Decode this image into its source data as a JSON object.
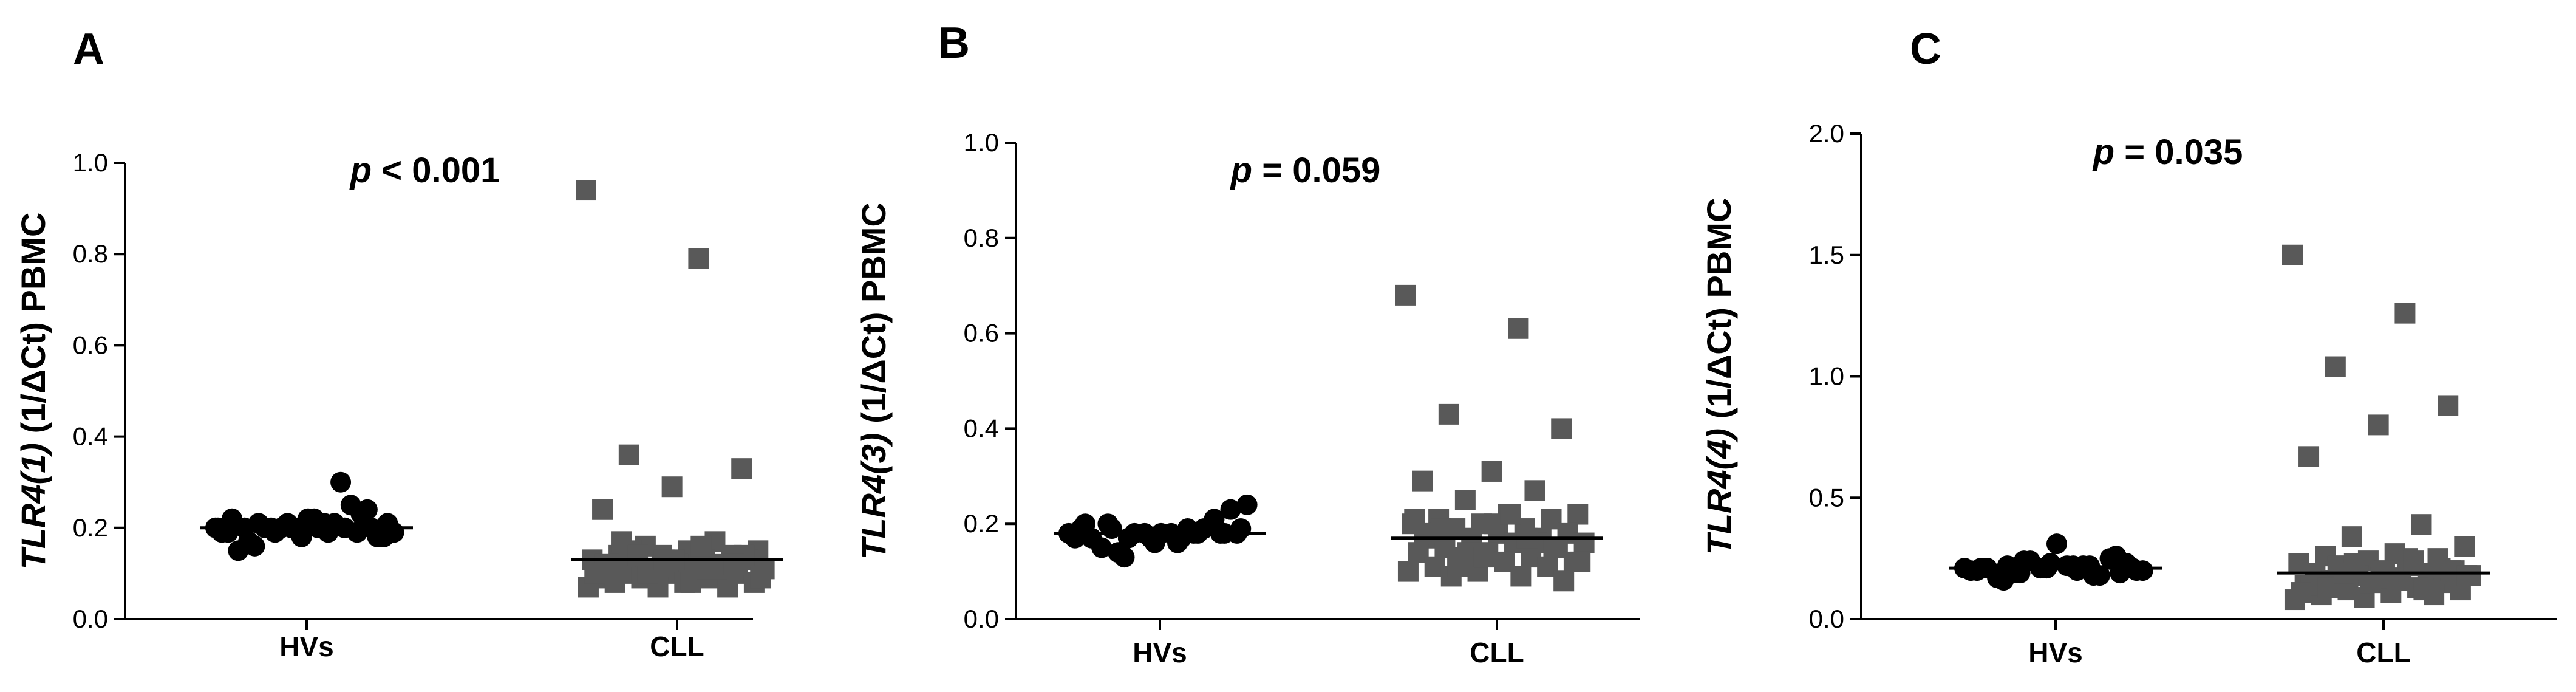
{
  "chart_data": [
    {
      "type": "scatter",
      "panel_label": "A",
      "ylabel_italic": "TLR4(1)",
      "ylabel_rest": " (1/ΔCt) PBMC",
      "annotation_italic": "p",
      "annotation_rest": " < 0.001",
      "categories": [
        "HVs",
        "CLL"
      ],
      "ylim": [
        0,
        1.0
      ],
      "yticks": [
        "0.0",
        "0.2",
        "0.4",
        "0.6",
        "0.8",
        "1.0"
      ],
      "tick_values": [
        0,
        0.2,
        0.4,
        0.6,
        0.8,
        1.0
      ],
      "series": [
        {
          "category": "HVs",
          "marker": "circle",
          "color": "#000000",
          "median": 0.2,
          "values": [
            0.2,
            0.19,
            0.21,
            0.2,
            0.18,
            0.22,
            0.2,
            0.19,
            0.21,
            0.2,
            0.17,
            0.23,
            0.2,
            0.19,
            0.21,
            0.2,
            0.18,
            0.22,
            0.15,
            0.25,
            0.2,
            0.19,
            0.21,
            0.16,
            0.24,
            0.2,
            0.19,
            0.3,
            0.2,
            0.18,
            0.22,
            0.2,
            0.19,
            0.21,
            0.2
          ]
        },
        {
          "category": "CLL",
          "marker": "square",
          "color": "#595959",
          "median": 0.13,
          "values": [
            0.94,
            0.79,
            0.36,
            0.33,
            0.29,
            0.24,
            0.17,
            0.16,
            0.15,
            0.15,
            0.14,
            0.14,
            0.14,
            0.13,
            0.13,
            0.13,
            0.13,
            0.12,
            0.12,
            0.12,
            0.11,
            0.11,
            0.11,
            0.1,
            0.1,
            0.1,
            0.09,
            0.09,
            0.09,
            0.08,
            0.08,
            0.08,
            0.07,
            0.07,
            0.07,
            0.16,
            0.15,
            0.14,
            0.13,
            0.12,
            0.11,
            0.1,
            0.09,
            0.08,
            0.17,
            0.12,
            0.13,
            0.1,
            0.11,
            0.14
          ]
        }
      ]
    },
    {
      "type": "scatter",
      "panel_label": "B",
      "ylabel_italic": "TLR4(3)",
      "ylabel_rest": " (1/ΔCt) PBMC",
      "annotation_italic": "p",
      "annotation_rest": " = 0.059",
      "categories": [
        "HVs",
        "CLL"
      ],
      "ylim": [
        0,
        1.0
      ],
      "yticks": [
        "0.0",
        "0.2",
        "0.4",
        "0.6",
        "0.8",
        "1.0"
      ],
      "tick_values": [
        0,
        0.2,
        0.4,
        0.6,
        0.8,
        1.0
      ],
      "series": [
        {
          "category": "HVs",
          "marker": "circle",
          "color": "#000000",
          "median": 0.18,
          "values": [
            0.18,
            0.17,
            0.19,
            0.18,
            0.16,
            0.2,
            0.18,
            0.17,
            0.19,
            0.18,
            0.15,
            0.21,
            0.18,
            0.17,
            0.19,
            0.14,
            0.23,
            0.18,
            0.17,
            0.19,
            0.18,
            0.24,
            0.16,
            0.2,
            0.18,
            0.17,
            0.19,
            0.18,
            0.13,
            0.18
          ]
        },
        {
          "category": "CLL",
          "marker": "square",
          "color": "#595959",
          "median": 0.17,
          "values": [
            0.68,
            0.61,
            0.43,
            0.4,
            0.31,
            0.29,
            0.27,
            0.25,
            0.22,
            0.22,
            0.21,
            0.21,
            0.2,
            0.2,
            0.19,
            0.19,
            0.18,
            0.18,
            0.17,
            0.17,
            0.17,
            0.16,
            0.16,
            0.15,
            0.15,
            0.14,
            0.14,
            0.13,
            0.13,
            0.12,
            0.12,
            0.11,
            0.11,
            0.1,
            0.1,
            0.09,
            0.09,
            0.08,
            0.2,
            0.18,
            0.16,
            0.14,
            0.12,
            0.22,
            0.19,
            0.15,
            0.13,
            0.21,
            0.17,
            0.11
          ]
        }
      ]
    },
    {
      "type": "scatter",
      "panel_label": "C",
      "ylabel_italic": "TLR4(4)",
      "ylabel_rest": " (1/ΔCt) PBMC",
      "annotation_italic": "p",
      "annotation_rest": " = 0.035",
      "categories": [
        "HVs",
        "CLL"
      ],
      "ylim": [
        0,
        2.0
      ],
      "yticks": [
        "0.0",
        "0.5",
        "1.0",
        "1.5",
        "2.0"
      ],
      "tick_values": [
        0,
        0.5,
        1.0,
        1.5,
        2.0
      ],
      "series": [
        {
          "category": "HVs",
          "marker": "circle",
          "color": "#000000",
          "median": 0.21,
          "values": [
            0.21,
            0.2,
            0.22,
            0.19,
            0.23,
            0.21,
            0.18,
            0.24,
            0.2,
            0.22,
            0.17,
            0.25,
            0.21,
            0.2,
            0.22,
            0.19,
            0.23,
            0.31,
            0.21,
            0.18,
            0.24,
            0.2,
            0.22,
            0.16,
            0.26,
            0.21,
            0.2,
            0.22,
            0.19,
            0.21
          ]
        },
        {
          "category": "CLL",
          "marker": "square",
          "color": "#595959",
          "median": 0.19,
          "values": [
            1.5,
            1.26,
            1.04,
            0.88,
            0.8,
            0.67,
            0.39,
            0.34,
            0.3,
            0.27,
            0.26,
            0.25,
            0.24,
            0.23,
            0.22,
            0.21,
            0.2,
            0.2,
            0.19,
            0.19,
            0.18,
            0.18,
            0.17,
            0.16,
            0.15,
            0.15,
            0.14,
            0.13,
            0.12,
            0.12,
            0.11,
            0.1,
            0.1,
            0.09,
            0.08,
            0.25,
            0.22,
            0.2,
            0.17,
            0.14,
            0.12,
            0.23,
            0.18,
            0.16,
            0.13,
            0.21,
            0.15,
            0.11,
            0.24,
            0.19
          ]
        }
      ]
    }
  ]
}
